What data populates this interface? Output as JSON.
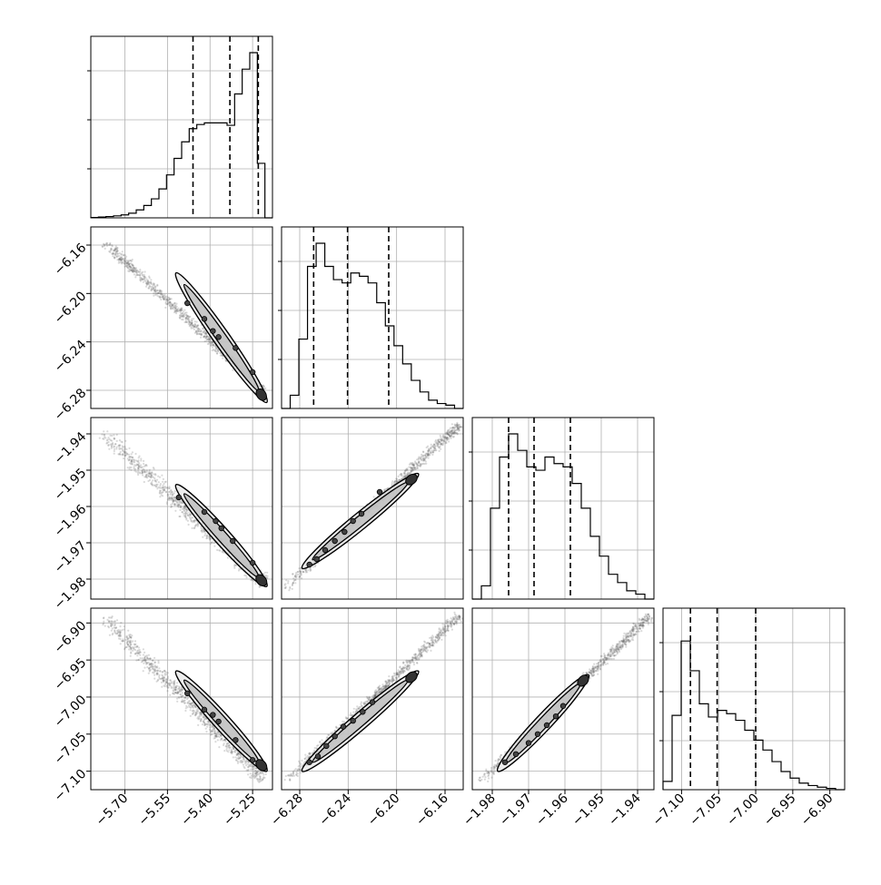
{
  "chart_data": {
    "type": "corner",
    "params": [
      {
        "range": [
          -5.82,
          -5.18
        ],
        "ticks": [
          -5.7,
          -5.55,
          -5.4,
          -5.25
        ],
        "tick_labels": [
          "−5.70",
          "−5.55",
          "−5.40",
          "−5.25"
        ],
        "quantiles": [
          -5.46,
          -5.33,
          -5.23
        ],
        "hist": [
          0.002,
          0.005,
          0.008,
          0.012,
          0.018,
          0.028,
          0.048,
          0.075,
          0.115,
          0.175,
          0.26,
          0.36,
          0.46,
          0.54,
          0.565,
          0.575,
          0.575,
          0.575,
          0.56,
          0.75,
          0.9,
          1.0,
          0.33,
          0.0
        ]
      },
      {
        "range": [
          -6.295,
          -6.145
        ],
        "ticks": [
          -6.28,
          -6.24,
          -6.2,
          -6.16
        ],
        "tick_labels": [
          "−6.28",
          "−6.24",
          "−6.20",
          "−6.16"
        ],
        "quantiles": [
          -6.2685,
          -6.2405,
          -6.2065
        ],
        "hist": [
          0.0,
          0.08,
          0.42,
          0.86,
          1.0,
          0.86,
          0.78,
          0.76,
          0.82,
          0.8,
          0.76,
          0.64,
          0.5,
          0.38,
          0.27,
          0.17,
          0.1,
          0.05,
          0.03,
          0.02,
          0.0
        ]
      },
      {
        "range": [
          -1.9855,
          -1.9355
        ],
        "ticks": [
          -1.98,
          -1.97,
          -1.96,
          -1.95,
          -1.94
        ],
        "tick_labels": [
          "−1.98",
          "−1.97",
          "−1.96",
          "−1.95",
          "−1.94"
        ],
        "quantiles": [
          -1.9755,
          -1.9685,
          -1.9585
        ],
        "hist": [
          0.0,
          0.08,
          0.55,
          0.86,
          1.0,
          0.9,
          0.8,
          0.78,
          0.86,
          0.82,
          0.8,
          0.7,
          0.55,
          0.38,
          0.26,
          0.15,
          0.1,
          0.05,
          0.03,
          0.0
        ]
      },
      {
        "range": [
          -7.125,
          -6.88
        ],
        "ticks": [
          -7.1,
          -7.05,
          -7.0,
          -6.95,
          -6.9
        ],
        "tick_labels": [
          "−7.10",
          "−7.05",
          "−7.00",
          "−6.95",
          "−6.90"
        ],
        "quantiles": [
          -7.088,
          -7.052,
          -7.0
        ],
        "hist": [
          0.05,
          0.45,
          0.9,
          0.72,
          0.52,
          0.44,
          0.48,
          0.46,
          0.42,
          0.36,
          0.3,
          0.24,
          0.17,
          0.11,
          0.07,
          0.04,
          0.025,
          0.015,
          0.008,
          0.0
        ]
      }
    ],
    "pairs": [
      {
        "x": 0,
        "y": 1,
        "line": [
          [
            -5.78,
            -6.156
          ],
          [
            -5.21,
            -6.28
          ]
        ],
        "contour": [
          -5.52,
          -6.183,
          -5.2,
          -6.29
        ],
        "dots": [
          [
            -5.48,
            -6.208
          ],
          [
            -5.42,
            -6.221
          ],
          [
            -5.39,
            -6.231
          ],
          [
            -5.37,
            -6.236
          ],
          [
            -5.31,
            -6.245
          ],
          [
            -5.25,
            -6.265
          ]
        ],
        "ylim": [
          -6.295,
          -6.145
        ]
      },
      {
        "x": 0,
        "y": 2,
        "line": [
          [
            -5.78,
            -1.9395
          ],
          [
            -5.21,
            -1.981
          ]
        ],
        "contour": [
          -5.52,
          -1.954,
          -5.2,
          -1.982
        ],
        "dots": [
          [
            -5.51,
            -1.9575
          ],
          [
            -5.42,
            -1.9615
          ],
          [
            -5.38,
            -1.964
          ],
          [
            -5.36,
            -1.966
          ],
          [
            -5.32,
            -1.9695
          ],
          [
            -5.25,
            -1.9755
          ]
        ],
        "ylim": [
          -1.9855,
          -1.9355
        ]
      },
      {
        "x": 1,
        "y": 2,
        "line": [
          [
            -6.292,
            -1.9825
          ],
          [
            -6.148,
            -1.9375
          ]
        ],
        "contour": [
          -6.278,
          -1.977,
          -6.182,
          -1.951
        ],
        "dots": [
          [
            -6.272,
            -1.976
          ],
          [
            -6.266,
            -1.9745
          ],
          [
            -6.259,
            -1.972
          ],
          [
            -6.251,
            -1.9695
          ],
          [
            -6.243,
            -1.967
          ],
          [
            -6.236,
            -1.964
          ],
          [
            -6.229,
            -1.962
          ],
          [
            -6.214,
            -1.956
          ]
        ],
        "ylim": [
          -1.9855,
          -1.9355
        ]
      },
      {
        "x": 0,
        "y": 3,
        "line": [
          [
            -5.78,
            -6.89
          ],
          [
            -5.21,
            -7.11
          ]
        ],
        "contour": [
          -5.52,
          -6.965,
          -5.2,
          -7.1
        ],
        "dots": [
          [
            -5.48,
            -6.995
          ],
          [
            -5.42,
            -7.017
          ],
          [
            -5.39,
            -7.024
          ],
          [
            -5.37,
            -7.033
          ],
          [
            -5.31,
            -7.058
          ],
          [
            -5.25,
            -7.085
          ]
        ],
        "ylim": [
          -7.125,
          -6.88
        ]
      },
      {
        "x": 1,
        "y": 3,
        "line": [
          [
            -6.292,
            -7.115
          ],
          [
            -6.148,
            -6.89
          ]
        ],
        "contour": [
          -6.278,
          -7.1,
          -6.182,
          -6.965
        ],
        "dots": [
          [
            -6.272,
            -7.088
          ],
          [
            -6.265,
            -7.08
          ],
          [
            -6.258,
            -7.066
          ],
          [
            -6.251,
            -7.053
          ],
          [
            -6.244,
            -7.04
          ],
          [
            -6.236,
            -7.032
          ],
          [
            -6.228,
            -7.02
          ],
          [
            -6.22,
            -7.007
          ]
        ],
        "ylim": [
          -7.125,
          -6.88
        ]
      },
      {
        "x": 2,
        "y": 3,
        "line": [
          [
            -1.9835,
            -7.115
          ],
          [
            -1.9365,
            -6.89
          ]
        ],
        "contour": [
          -1.9785,
          -7.1,
          -1.9535,
          -6.97
        ],
        "dots": [
          [
            -1.9765,
            -7.088
          ],
          [
            -1.9735,
            -7.077
          ],
          [
            -1.97,
            -7.062
          ],
          [
            -1.9675,
            -7.05
          ],
          [
            -1.965,
            -7.038
          ],
          [
            -1.9625,
            -7.026
          ],
          [
            -1.9605,
            -7.012
          ]
        ],
        "ylim": [
          -7.125,
          -6.88
        ]
      }
    ],
    "grid": true,
    "legend": "none"
  }
}
